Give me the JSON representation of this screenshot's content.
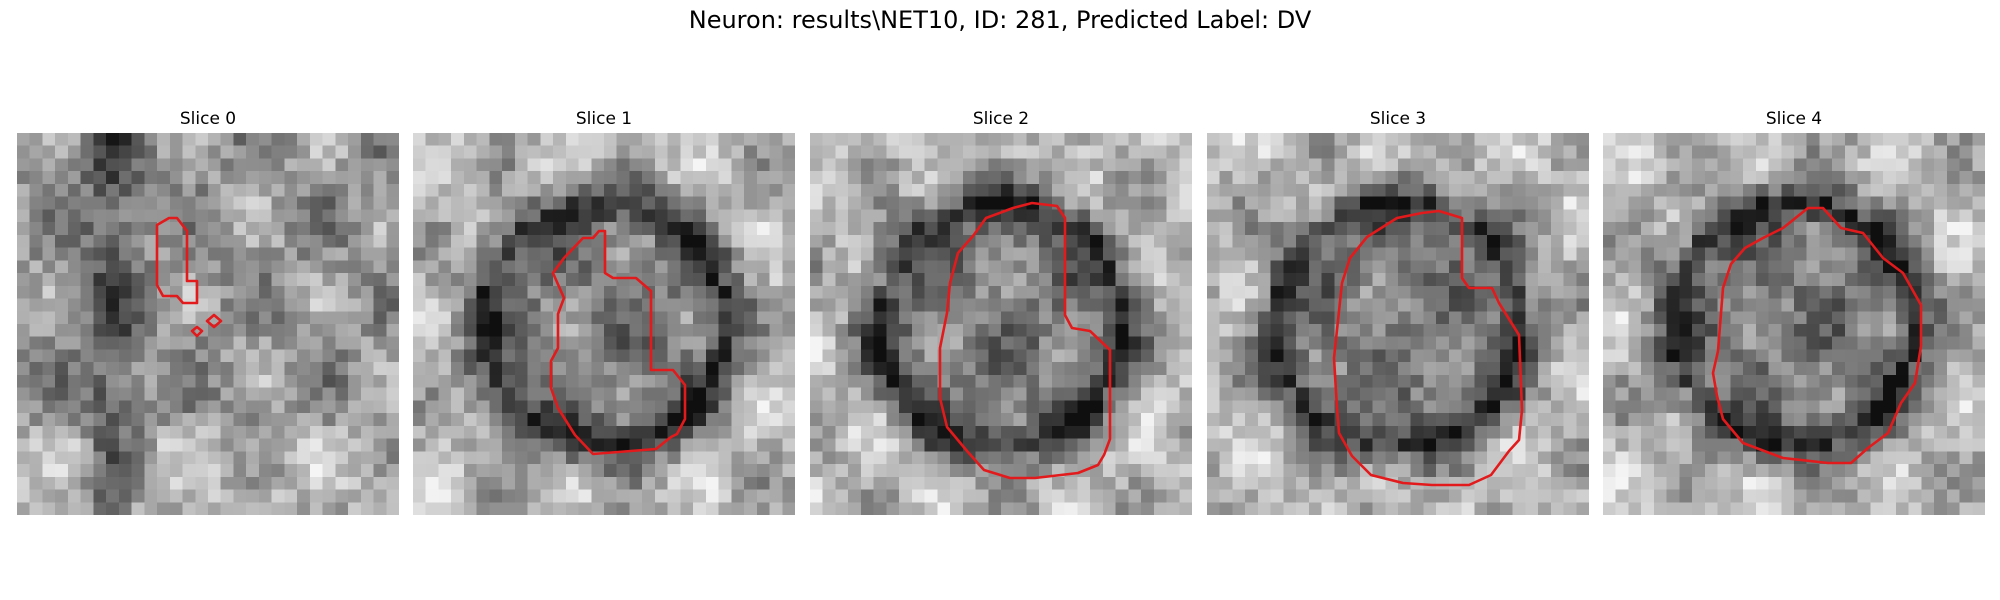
{
  "figure": {
    "title": "Neuron: results\\NET10, ID: 281, Predicted Label: DV",
    "contour_color": "#e31a1c",
    "colormap": "grayscale"
  },
  "slices": [
    {
      "label": "Slice 0",
      "contours": [
        [
          [
            152,
            85
          ],
          [
            160,
            85
          ],
          [
            170,
            98
          ],
          [
            170,
            148
          ],
          [
            180,
            148
          ],
          [
            180,
            170
          ],
          [
            166,
            170
          ],
          [
            160,
            163
          ],
          [
            146,
            163
          ],
          [
            140,
            152
          ],
          [
            140,
            92
          ]
        ],
        [
          [
            190,
            188
          ],
          [
            197,
            182
          ],
          [
            204,
            188
          ],
          [
            197,
            194
          ]
        ],
        [
          [
            175,
            198
          ],
          [
            180,
            194
          ],
          [
            185,
            198
          ],
          [
            180,
            203
          ]
        ]
      ]
    },
    {
      "label": "Slice 1",
      "contours": [
        [
          [
            140,
            140
          ],
          [
            151,
            125
          ],
          [
            170,
            105
          ],
          [
            180,
            105
          ],
          [
            186,
            98
          ],
          [
            192,
            98
          ],
          [
            192,
            140
          ],
          [
            200,
            145
          ],
          [
            223,
            145
          ],
          [
            238,
            158
          ],
          [
            238,
            237
          ],
          [
            260,
            237
          ],
          [
            272,
            252
          ],
          [
            272,
            286
          ],
          [
            264,
            301
          ],
          [
            258,
            304
          ],
          [
            243,
            316
          ],
          [
            180,
            321
          ],
          [
            162,
            302
          ],
          [
            145,
            275
          ],
          [
            138,
            255
          ],
          [
            138,
            228
          ],
          [
            145,
            215
          ],
          [
            145,
            181
          ],
          [
            151,
            165
          ]
        ]
      ]
    },
    {
      "label": "Slice 2",
      "contours": [
        [
          [
            148,
            120
          ],
          [
            163,
            103
          ],
          [
            176,
            85
          ],
          [
            203,
            75
          ],
          [
            222,
            70
          ],
          [
            247,
            73
          ],
          [
            255,
            85
          ],
          [
            255,
            182
          ],
          [
            262,
            195
          ],
          [
            280,
            198
          ],
          [
            300,
            217
          ],
          [
            300,
            306
          ],
          [
            294,
            322
          ],
          [
            288,
            332
          ],
          [
            268,
            340
          ],
          [
            225,
            345
          ],
          [
            200,
            345
          ],
          [
            174,
            337
          ],
          [
            157,
            318
          ],
          [
            137,
            294
          ],
          [
            130,
            265
          ],
          [
            130,
            215
          ],
          [
            137,
            180
          ],
          [
            140,
            150
          ]
        ]
      ]
    },
    {
      "label": "Slice 3",
      "contours": [
        [
          [
            135,
            150
          ],
          [
            143,
            125
          ],
          [
            160,
            104
          ],
          [
            190,
            85
          ],
          [
            215,
            80
          ],
          [
            232,
            78
          ],
          [
            255,
            85
          ],
          [
            255,
            145
          ],
          [
            262,
            155
          ],
          [
            285,
            155
          ],
          [
            292,
            170
          ],
          [
            312,
            202
          ],
          [
            315,
            277
          ],
          [
            312,
            307
          ],
          [
            302,
            318
          ],
          [
            284,
            342
          ],
          [
            262,
            352
          ],
          [
            225,
            352
          ],
          [
            196,
            350
          ],
          [
            164,
            342
          ],
          [
            145,
            323
          ],
          [
            132,
            300
          ],
          [
            130,
            275
          ],
          [
            127,
            225
          ]
        ]
      ]
    },
    {
      "label": "Slice 4",
      "contours": [
        [
          [
            120,
            155
          ],
          [
            128,
            131
          ],
          [
            142,
            115
          ],
          [
            160,
            105
          ],
          [
            180,
            95
          ],
          [
            205,
            75
          ],
          [
            220,
            75
          ],
          [
            238,
            95
          ],
          [
            260,
            100
          ],
          [
            280,
            125
          ],
          [
            300,
            140
          ],
          [
            318,
            172
          ],
          [
            318,
            213
          ],
          [
            312,
            250
          ],
          [
            298,
            270
          ],
          [
            285,
            300
          ],
          [
            265,
            315
          ],
          [
            248,
            330
          ],
          [
            225,
            330
          ],
          [
            180,
            325
          ],
          [
            140,
            310
          ],
          [
            120,
            286
          ],
          [
            114,
            263
          ],
          [
            110,
            240
          ],
          [
            115,
            218
          ]
        ]
      ]
    }
  ]
}
